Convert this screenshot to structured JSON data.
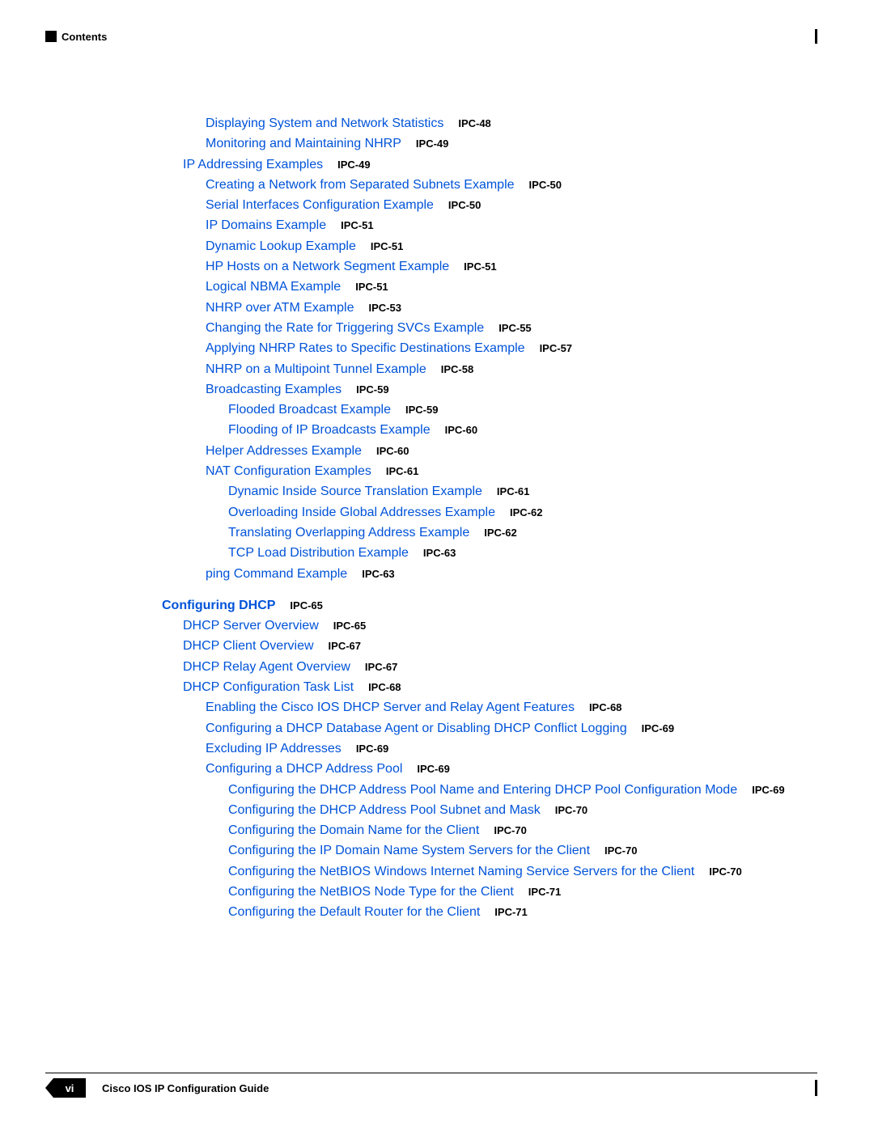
{
  "header": {
    "contents": "Contents"
  },
  "footer": {
    "page_num": "vi",
    "guide_title": "Cisco IOS IP Configuration Guide"
  },
  "toc": [
    {
      "indent": 2,
      "title": "Displaying System and Network Statistics",
      "page": "IPC-48"
    },
    {
      "indent": 2,
      "title": "Monitoring and Maintaining NHRP",
      "page": "IPC-49"
    },
    {
      "indent": 1,
      "title": "IP Addressing Examples",
      "page": "IPC-49"
    },
    {
      "indent": 2,
      "title": "Creating a Network from Separated Subnets Example",
      "page": "IPC-50"
    },
    {
      "indent": 2,
      "title": "Serial Interfaces Configuration Example",
      "page": "IPC-50"
    },
    {
      "indent": 2,
      "title": "IP Domains Example",
      "page": "IPC-51"
    },
    {
      "indent": 2,
      "title": "Dynamic Lookup Example",
      "page": "IPC-51"
    },
    {
      "indent": 2,
      "title": "HP Hosts on a Network Segment Example",
      "page": "IPC-51"
    },
    {
      "indent": 2,
      "title": "Logical NBMA Example",
      "page": "IPC-51"
    },
    {
      "indent": 2,
      "title": "NHRP over ATM Example",
      "page": "IPC-53"
    },
    {
      "indent": 2,
      "title": "Changing the Rate for Triggering SVCs Example",
      "page": "IPC-55"
    },
    {
      "indent": 2,
      "title": "Applying NHRP Rates to Specific Destinations Example",
      "page": "IPC-57"
    },
    {
      "indent": 2,
      "title": "NHRP on a Multipoint Tunnel Example",
      "page": "IPC-58"
    },
    {
      "indent": 2,
      "title": "Broadcasting Examples",
      "page": "IPC-59"
    },
    {
      "indent": 3,
      "title": "Flooded Broadcast Example",
      "page": "IPC-59"
    },
    {
      "indent": 3,
      "title": "Flooding of IP Broadcasts Example",
      "page": "IPC-60"
    },
    {
      "indent": 2,
      "title": "Helper Addresses Example",
      "page": "IPC-60"
    },
    {
      "indent": 2,
      "title": "NAT Configuration Examples",
      "page": "IPC-61"
    },
    {
      "indent": 3,
      "title": "Dynamic Inside Source Translation Example",
      "page": "IPC-61"
    },
    {
      "indent": 3,
      "title": "Overloading Inside Global Addresses Example",
      "page": "IPC-62"
    },
    {
      "indent": 3,
      "title": "Translating Overlapping Address Example",
      "page": "IPC-62"
    },
    {
      "indent": 3,
      "title": "TCP Load Distribution Example",
      "page": "IPC-63"
    },
    {
      "indent": 2,
      "title": "ping Command Example",
      "page": "IPC-63"
    },
    {
      "indent": 0,
      "title": "Configuring DHCP",
      "page": "IPC-65",
      "chapter": true,
      "gap": true
    },
    {
      "indent": 1,
      "title": "DHCP Server Overview",
      "page": "IPC-65"
    },
    {
      "indent": 1,
      "title": "DHCP Client Overview",
      "page": "IPC-67"
    },
    {
      "indent": 1,
      "title": "DHCP Relay Agent Overview",
      "page": "IPC-67"
    },
    {
      "indent": 1,
      "title": "DHCP Configuration Task List",
      "page": "IPC-68"
    },
    {
      "indent": 2,
      "title": "Enabling the Cisco IOS DHCP Server and Relay Agent Features",
      "page": "IPC-68"
    },
    {
      "indent": 2,
      "title": "Configuring a DHCP Database Agent or Disabling DHCP Conflict Logging",
      "page": "IPC-69"
    },
    {
      "indent": 2,
      "title": "Excluding IP Addresses",
      "page": "IPC-69"
    },
    {
      "indent": 2,
      "title": "Configuring a DHCP Address Pool",
      "page": "IPC-69"
    },
    {
      "indent": 3,
      "title": "Configuring the DHCP Address Pool Name and Entering DHCP Pool Configuration Mode",
      "page": "IPC-69"
    },
    {
      "indent": 3,
      "title": "Configuring the DHCP Address Pool Subnet and Mask",
      "page": "IPC-70"
    },
    {
      "indent": 3,
      "title": "Configuring the Domain Name for the Client",
      "page": "IPC-70"
    },
    {
      "indent": 3,
      "title": "Configuring the IP Domain Name System Servers for the Client",
      "page": "IPC-70"
    },
    {
      "indent": 3,
      "title": "Configuring the NetBIOS Windows Internet Naming Service Servers for the Client",
      "page": "IPC-70"
    },
    {
      "indent": 3,
      "title": "Configuring the NetBIOS Node Type for the Client",
      "page": "IPC-71"
    },
    {
      "indent": 3,
      "title": "Configuring the Default Router for the Client",
      "page": "IPC-71"
    }
  ]
}
